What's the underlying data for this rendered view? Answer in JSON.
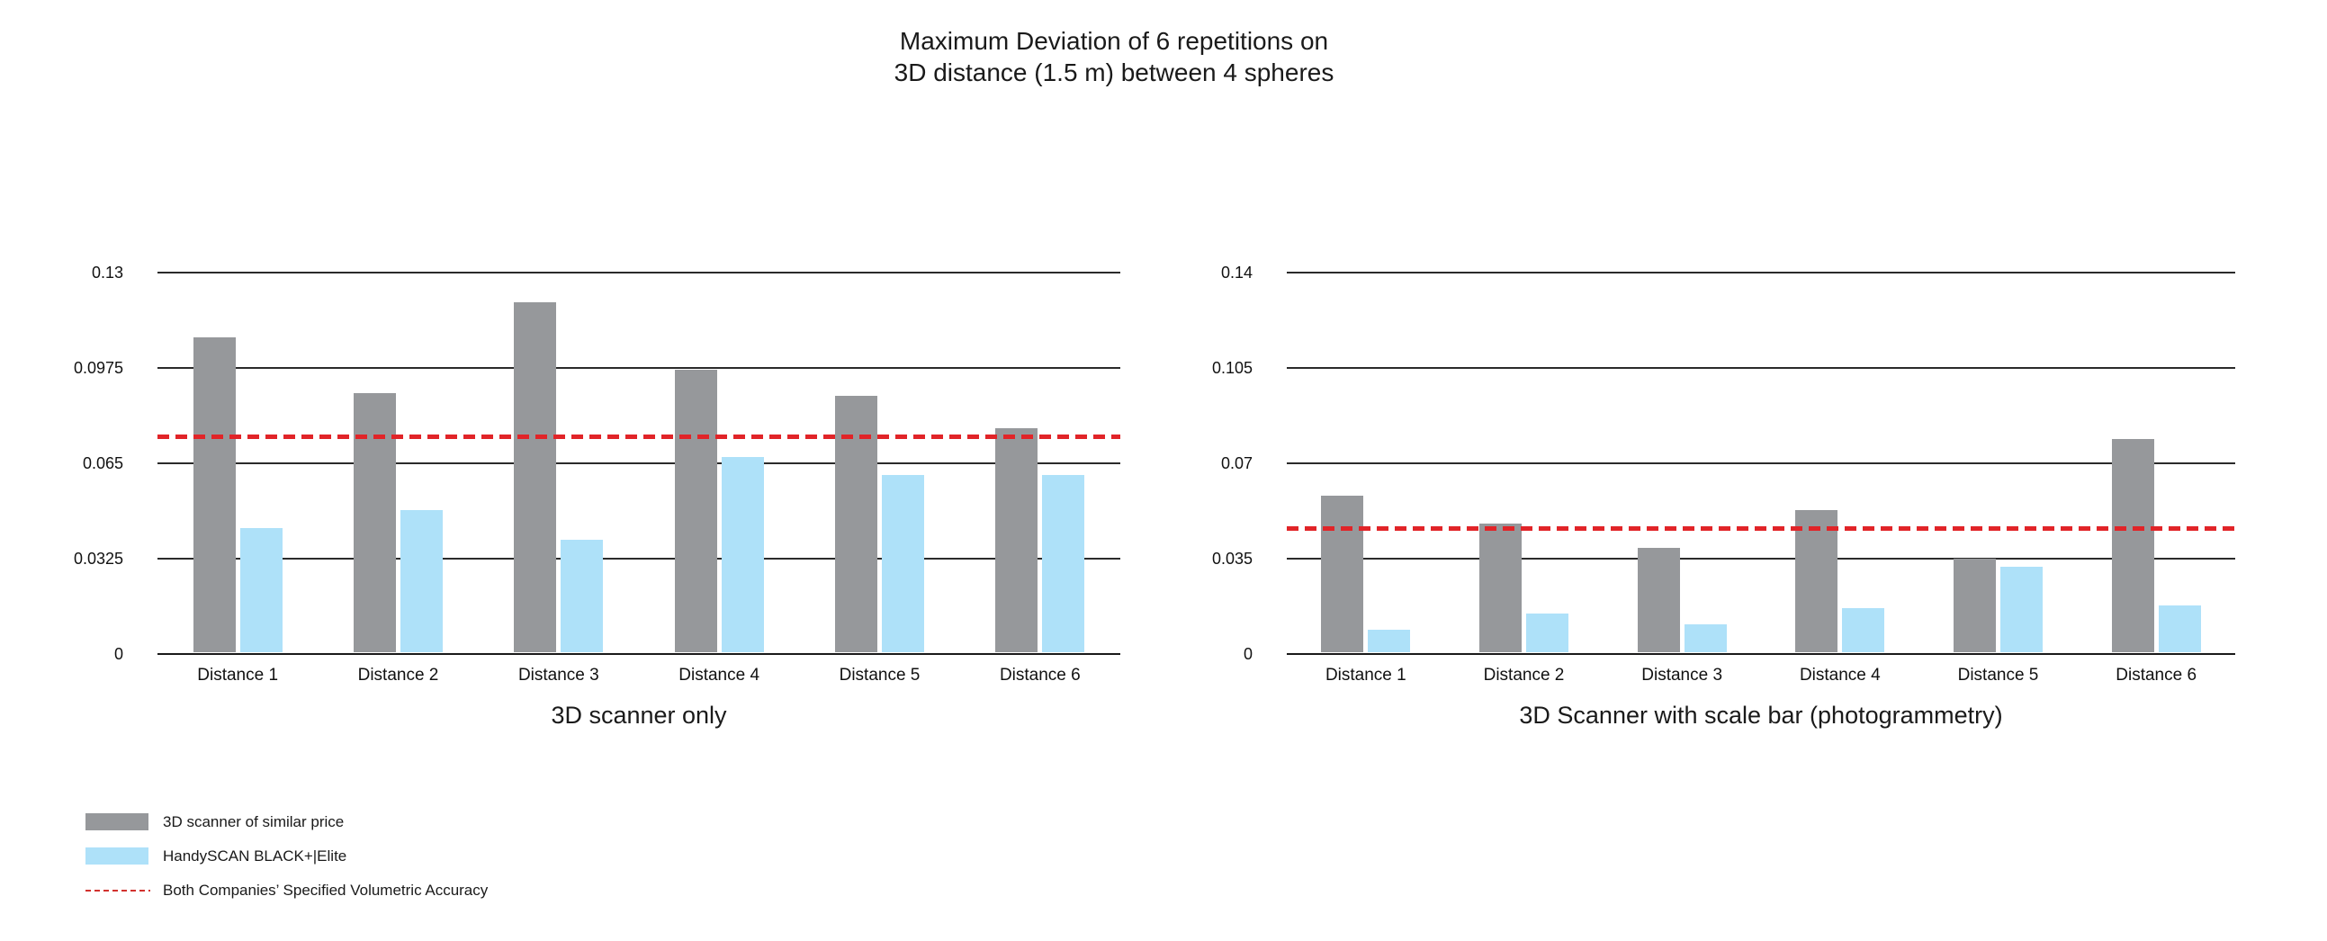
{
  "title": {
    "line1": "Maximum Deviation of 6 repetitions on",
    "line2": "3D distance (1.5 m) between 4 spheres"
  },
  "legend": {
    "position": "bottom-left",
    "items": [
      {
        "type": "swatch",
        "color": "#96989b",
        "label": "3D scanner of similar price"
      },
      {
        "type": "swatch",
        "color": "#aee1f9",
        "label": "HandySCAN BLACK+|Elite"
      },
      {
        "type": "dashed-line",
        "color": "#d2322e",
        "label": "Both Companies’ Specified Volumetric Accuracy"
      }
    ]
  },
  "colors": {
    "bar_gray": "#96989b",
    "bar_blue": "#aee1f9",
    "reference_red": "#e12428",
    "gridline": "#2a2a2a",
    "text": "#1a1a1a"
  },
  "chart_data": [
    {
      "type": "bar",
      "title": "3D scanner only",
      "categories": [
        "Distance 1",
        "Distance 2",
        "Distance 3",
        "Distance 4",
        "Distance 5",
        "Distance 6"
      ],
      "series": [
        {
          "name": "3D scanner of similar price",
          "color": "#96989b",
          "values": [
            0.108,
            0.089,
            0.12,
            0.097,
            0.088,
            0.077
          ]
        },
        {
          "name": "HandySCAN BLACK+|Elite",
          "color": "#aee1f9",
          "values": [
            0.043,
            0.049,
            0.039,
            0.067,
            0.061,
            0.061
          ]
        }
      ],
      "reference_line": {
        "label": "Both Companies’ Specified Volumetric Accuracy",
        "value": 0.074,
        "color": "#e12428"
      },
      "ylim": [
        0,
        0.13
      ],
      "yticks": [
        0,
        0.0325,
        0.065,
        0.0975,
        0.13
      ],
      "ytick_labels": [
        "0",
        "0.0325",
        "0.065",
        "0.0975",
        "0.13"
      ],
      "grid": true,
      "legend_position": "bottom-left"
    },
    {
      "type": "bar",
      "title": "3D Scanner with scale bar (photogrammetry)",
      "categories": [
        "Distance 1",
        "Distance 2",
        "Distance 3",
        "Distance 4",
        "Distance 5",
        "Distance 6"
      ],
      "series": [
        {
          "name": "3D scanner of similar price",
          "color": "#96989b",
          "values": [
            0.058,
            0.048,
            0.039,
            0.053,
            0.035,
            0.079
          ]
        },
        {
          "name": "HandySCAN BLACK+|Elite",
          "color": "#aee1f9",
          "values": [
            0.009,
            0.015,
            0.011,
            0.017,
            0.032,
            0.018
          ]
        }
      ],
      "reference_line": {
        "label": "Both Companies’ Specified Volumetric Accuracy",
        "value": 0.046,
        "color": "#e12428"
      },
      "ylim": [
        0,
        0.14
      ],
      "yticks": [
        0,
        0.035,
        0.07,
        0.105,
        0.14
      ],
      "ytick_labels": [
        "0",
        "0.035",
        "0.07",
        "0.105",
        "0.14"
      ],
      "grid": true,
      "legend_position": "bottom-left"
    }
  ]
}
